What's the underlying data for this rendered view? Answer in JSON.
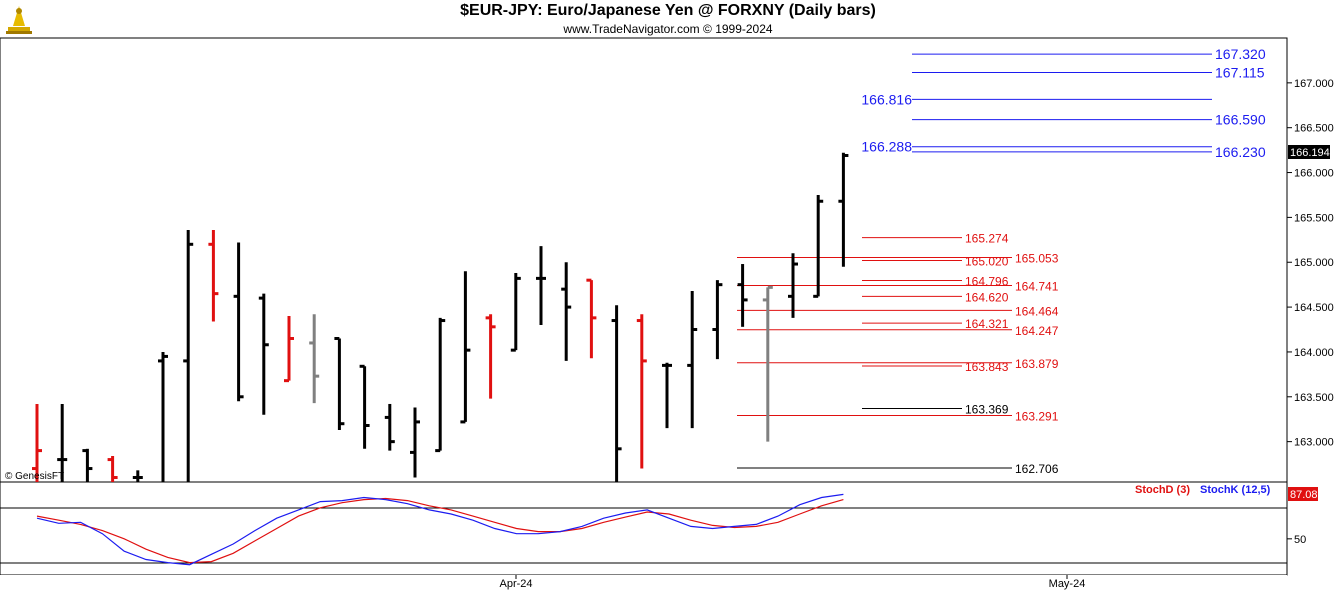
{
  "header": {
    "title": "$EUR-JPY:  Euro/Japanese Yen @ FORXNY  (Daily bars)",
    "subtitle": "www.TradeNavigator.com © 1999-2024"
  },
  "copyright": "© GenesisFT",
  "chart_data": {
    "type": "ohlc",
    "price_axis": {
      "ticks": [
        "167.000",
        "166.500",
        "166.000",
        "165.500",
        "165.000",
        "164.500",
        "164.000",
        "163.500",
        "163.000"
      ],
      "ylim": [
        162.55,
        167.5
      ],
      "last_price": "166.194"
    },
    "date_axis": {
      "labels": [
        "Apr-24",
        "May-24"
      ]
    },
    "bars": [
      {
        "o": 162.7,
        "h": 163.42,
        "l": 162.5,
        "c": 162.9,
        "color": "red"
      },
      {
        "o": 162.8,
        "h": 163.42,
        "l": 162.5,
        "c": 162.8,
        "color": "black"
      },
      {
        "o": 162.9,
        "h": 162.92,
        "l": 162.5,
        "c": 162.7,
        "color": "black"
      },
      {
        "o": 162.8,
        "h": 162.84,
        "l": 162.5,
        "c": 162.6,
        "color": "red"
      },
      {
        "o": 162.6,
        "h": 162.68,
        "l": 162.5,
        "c": 162.6,
        "color": "black"
      },
      {
        "o": 163.9,
        "h": 164.0,
        "l": 162.5,
        "c": 163.95,
        "color": "black"
      },
      {
        "o": 163.9,
        "h": 165.36,
        "l": 162.5,
        "c": 165.2,
        "color": "black"
      },
      {
        "o": 165.2,
        "h": 165.36,
        "l": 164.34,
        "c": 164.65,
        "color": "red"
      },
      {
        "o": 164.62,
        "h": 165.22,
        "l": 163.45,
        "c": 163.5,
        "color": "black"
      },
      {
        "o": 164.6,
        "h": 164.65,
        "l": 163.3,
        "c": 164.08,
        "color": "black"
      },
      {
        "o": 163.68,
        "h": 164.4,
        "l": 163.68,
        "c": 164.15,
        "color": "red"
      },
      {
        "o": 164.1,
        "h": 164.42,
        "l": 163.43,
        "c": 163.73,
        "color": "gray"
      },
      {
        "o": 164.15,
        "h": 164.15,
        "l": 163.13,
        "c": 163.2,
        "color": "black"
      },
      {
        "o": 163.84,
        "h": 163.84,
        "l": 162.92,
        "c": 163.18,
        "color": "black"
      },
      {
        "o": 163.27,
        "h": 163.42,
        "l": 162.9,
        "c": 163.0,
        "color": "black"
      },
      {
        "o": 162.88,
        "h": 163.38,
        "l": 162.6,
        "c": 163.22,
        "color": "black"
      },
      {
        "o": 162.9,
        "h": 164.38,
        "l": 162.9,
        "c": 164.35,
        "color": "black"
      },
      {
        "o": 163.22,
        "h": 164.9,
        "l": 163.22,
        "c": 164.02,
        "color": "black"
      },
      {
        "o": 164.38,
        "h": 164.42,
        "l": 163.48,
        "c": 164.28,
        "color": "red"
      },
      {
        "o": 164.02,
        "h": 164.88,
        "l": 164.02,
        "c": 164.82,
        "color": "black"
      },
      {
        "o": 164.82,
        "h": 165.18,
        "l": 164.3,
        "c": 164.82,
        "color": "black"
      },
      {
        "o": 164.7,
        "h": 165.0,
        "l": 163.9,
        "c": 164.5,
        "color": "black"
      },
      {
        "o": 164.8,
        "h": 164.8,
        "l": 163.93,
        "c": 164.38,
        "color": "red"
      },
      {
        "o": 164.35,
        "h": 164.52,
        "l": 162.55,
        "c": 162.92,
        "color": "black"
      },
      {
        "o": 164.35,
        "h": 164.42,
        "l": 162.7,
        "c": 163.9,
        "color": "red"
      },
      {
        "o": 163.85,
        "h": 163.88,
        "l": 163.15,
        "c": 163.85,
        "color": "black"
      },
      {
        "o": 163.85,
        "h": 164.68,
        "l": 163.15,
        "c": 164.25,
        "color": "black"
      },
      {
        "o": 164.25,
        "h": 164.8,
        "l": 163.92,
        "c": 164.75,
        "color": "black"
      },
      {
        "o": 164.75,
        "h": 164.98,
        "l": 164.28,
        "c": 164.58,
        "color": "black"
      },
      {
        "o": 164.58,
        "h": 164.72,
        "l": 163.0,
        "c": 164.72,
        "color": "gray"
      },
      {
        "o": 164.62,
        "h": 165.1,
        "l": 164.38,
        "c": 164.98,
        "color": "black"
      },
      {
        "o": 164.62,
        "h": 165.75,
        "l": 164.62,
        "c": 165.68,
        "color": "black"
      },
      {
        "o": 165.68,
        "h": 166.22,
        "l": 164.95,
        "c": 166.19,
        "color": "black"
      }
    ],
    "levels": [
      {
        "value": 167.32,
        "label": "167.320",
        "color": "blue"
      },
      {
        "value": 167.115,
        "label": "167.115",
        "color": "blue"
      },
      {
        "value": 166.816,
        "label": "166.816",
        "color": "blue"
      },
      {
        "value": 166.59,
        "label": "166.590",
        "color": "blue"
      },
      {
        "value": 166.288,
        "label": "166.288",
        "color": "blue"
      },
      {
        "value": 166.23,
        "label": "166.230",
        "color": "blue"
      },
      {
        "value": 165.274,
        "label": "165.274",
        "color": "red"
      },
      {
        "value": 165.053,
        "label": "165.053",
        "color": "red"
      },
      {
        "value": 165.02,
        "label": "165.020",
        "color": "red"
      },
      {
        "value": 164.796,
        "label": "164.796",
        "color": "red"
      },
      {
        "value": 164.741,
        "label": "164.741",
        "color": "red"
      },
      {
        "value": 164.62,
        "label": "164.620",
        "color": "red"
      },
      {
        "value": 164.464,
        "label": "164.464",
        "color": "red"
      },
      {
        "value": 164.321,
        "label": "164.321",
        "color": "red"
      },
      {
        "value": 164.247,
        "label": "164.247",
        "color": "red"
      },
      {
        "value": 163.879,
        "label": "163.879",
        "color": "red"
      },
      {
        "value": 163.843,
        "label": "163.843",
        "color": "red"
      },
      {
        "value": 163.369,
        "label": "163.369",
        "color": "black"
      },
      {
        "value": 163.291,
        "label": "163.291",
        "color": "red"
      },
      {
        "value": 162.706,
        "label": "162.706",
        "color": "black"
      }
    ],
    "stochastic": {
      "ticks": [
        "50"
      ],
      "ylim": [
        15,
        105
      ],
      "last_value": "87.08",
      "legend": [
        {
          "name": "StochD (3)",
          "color": "#e01010"
        },
        {
          "name": "StochK (12,5)",
          "color": "#1c1cf0"
        }
      ],
      "k": [
        70,
        65,
        66,
        55,
        38,
        30,
        27,
        25,
        35,
        45,
        58,
        70,
        78,
        86,
        87,
        90,
        88,
        84,
        78,
        74,
        68,
        60,
        55,
        55,
        57,
        62,
        70,
        75,
        78,
        70,
        62,
        60,
        62,
        64,
        72,
        83,
        90,
        93
      ],
      "d": [
        72,
        68,
        64,
        58,
        50,
        40,
        32,
        27,
        28,
        36,
        48,
        60,
        72,
        80,
        85,
        88,
        89,
        87,
        82,
        78,
        72,
        66,
        60,
        57,
        57,
        60,
        66,
        71,
        76,
        74,
        68,
        63,
        61,
        62,
        66,
        74,
        82,
        88
      ]
    }
  }
}
